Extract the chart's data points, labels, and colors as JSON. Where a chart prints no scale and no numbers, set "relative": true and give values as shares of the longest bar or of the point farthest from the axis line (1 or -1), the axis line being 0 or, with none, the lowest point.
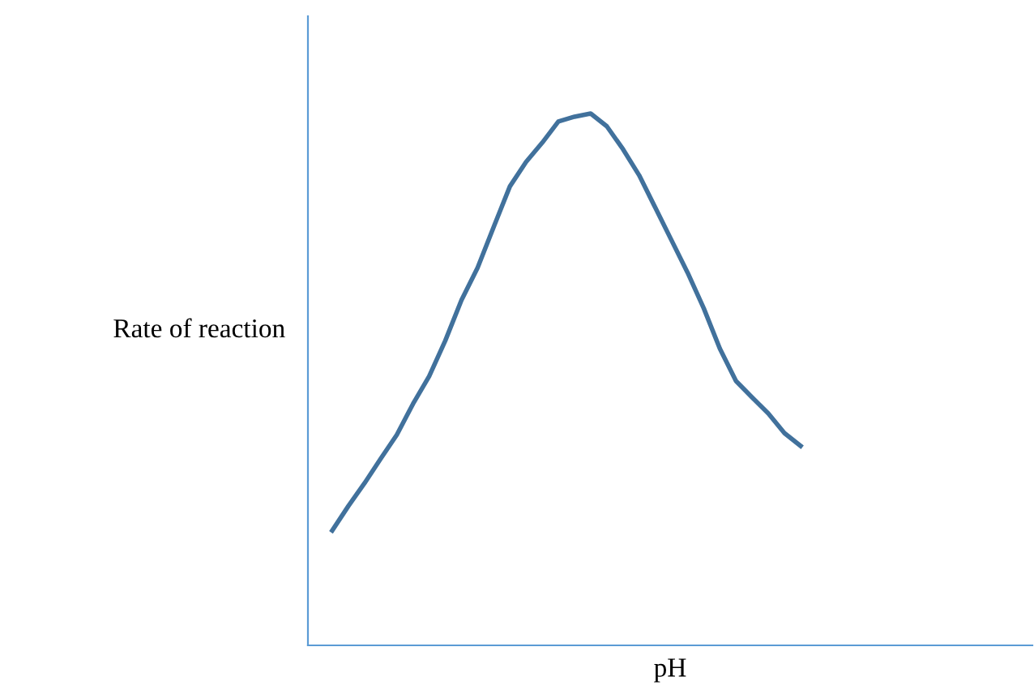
{
  "chart_data": {
    "type": "line",
    "relative": true,
    "xlabel": "pH",
    "ylabel": "Rate of reaction",
    "categories": [
      null,
      null,
      null,
      null,
      null,
      null,
      null,
      null,
      null,
      null,
      null,
      null,
      null,
      null,
      null,
      null,
      null,
      null,
      null,
      null,
      null,
      null,
      null,
      null,
      null,
      null,
      null,
      null,
      null,
      null
    ],
    "series": [
      {
        "color": "#41719c",
        "values": [
          0.216,
          0.262,
          0.305,
          0.351,
          0.396,
          0.454,
          0.506,
          0.573,
          0.649,
          0.71,
          0.787,
          0.863,
          0.909,
          0.945,
          0.985,
          0.994,
          1,
          0.976,
          0.933,
          0.884,
          0.823,
          0.762,
          0.701,
          0.634,
          0.558,
          0.497,
          0.466,
          0.436,
          0.399,
          0.375
        ]
      }
    ],
    "grid": false,
    "legend": false,
    "marker": "none",
    "line_style": "solid"
  }
}
